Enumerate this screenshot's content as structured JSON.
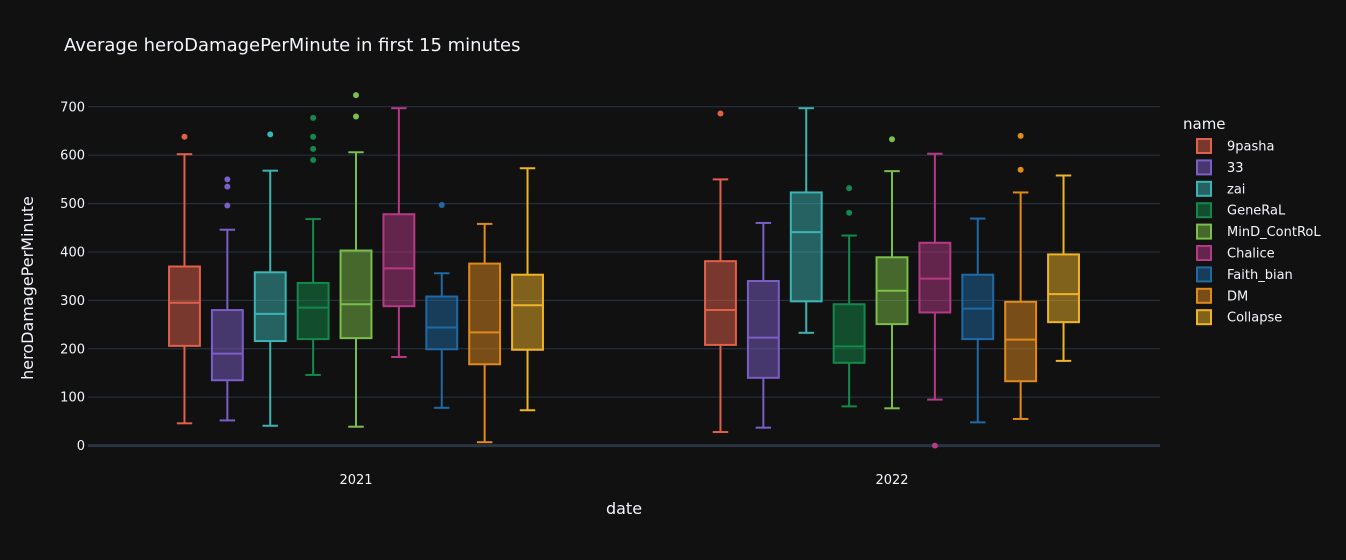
{
  "chart_data": {
    "type": "box",
    "title": "Average heroDamagePerMinute in first 15 minutes",
    "xlabel": "date",
    "ylabel": "heroDamagePerMinute",
    "categories": [
      "2021",
      "2022"
    ],
    "yticks": [
      0,
      100,
      200,
      300,
      400,
      500,
      600,
      700
    ],
    "ylim": [
      -5,
      745
    ],
    "legend_title": "name",
    "grid": true,
    "legend_position": "right",
    "series": [
      {
        "name": "9pasha",
        "color": "#e0604a",
        "boxes": [
          {
            "min": 46,
            "q1": 206,
            "median": 295,
            "q3": 370,
            "max": 602,
            "outliers": [
              638
            ]
          },
          {
            "min": 28,
            "q1": 208,
            "median": 280,
            "q3": 381,
            "max": 550,
            "outliers": [
              686
            ]
          }
        ]
      },
      {
        "name": "33",
        "color": "#7b5ec8",
        "boxes": [
          {
            "min": 52,
            "q1": 135,
            "median": 190,
            "q3": 280,
            "max": 446,
            "outliers": [
              496,
              535,
              550
            ]
          },
          {
            "min": 37,
            "q1": 140,
            "median": 223,
            "q3": 340,
            "max": 460,
            "outliers": []
          }
        ]
      },
      {
        "name": "zai",
        "color": "#3cb4b4",
        "boxes": [
          {
            "min": 41,
            "q1": 216,
            "median": 272,
            "q3": 358,
            "max": 568,
            "outliers": [
              643
            ]
          },
          {
            "min": 233,
            "q1": 298,
            "median": 441,
            "q3": 523,
            "max": 697,
            "outliers": []
          }
        ]
      },
      {
        "name": "GeneRaL",
        "color": "#14894c",
        "boxes": [
          {
            "min": 146,
            "q1": 220,
            "median": 285,
            "q3": 336,
            "max": 468,
            "outliers": [
              590,
              613,
              638,
              677
            ]
          },
          {
            "min": 81,
            "q1": 171,
            "median": 205,
            "q3": 292,
            "max": 434,
            "outliers": [
              481,
              532
            ]
          }
        ]
      },
      {
        "name": "MinD_ContRoL",
        "color": "#7bbf4a",
        "boxes": [
          {
            "min": 39,
            "q1": 222,
            "median": 292,
            "q3": 403,
            "max": 606,
            "outliers": [
              680,
              724
            ]
          },
          {
            "min": 77,
            "q1": 251,
            "median": 320,
            "q3": 389,
            "max": 567,
            "outliers": [
              633
            ]
          }
        ]
      },
      {
        "name": "Chalice",
        "color": "#b53a86",
        "boxes": [
          {
            "min": 183,
            "q1": 288,
            "median": 366,
            "q3": 478,
            "max": 697,
            "outliers": []
          },
          {
            "min": 95,
            "q1": 275,
            "median": 345,
            "q3": 419,
            "max": 603,
            "outliers": [
              0
            ]
          }
        ]
      },
      {
        "name": "Faith_bian",
        "color": "#1f6aa5",
        "boxes": [
          {
            "min": 78,
            "q1": 199,
            "median": 244,
            "q3": 308,
            "max": 356,
            "outliers": [
              497
            ]
          },
          {
            "min": 48,
            "q1": 220,
            "median": 283,
            "q3": 353,
            "max": 469,
            "outliers": []
          }
        ]
      },
      {
        "name": "DM",
        "color": "#e08a1e",
        "boxes": [
          {
            "min": 7,
            "q1": 168,
            "median": 234,
            "q3": 376,
            "max": 458,
            "outliers": []
          },
          {
            "min": 55,
            "q1": 133,
            "median": 219,
            "q3": 297,
            "max": 523,
            "outliers": [
              570,
              640
            ]
          }
        ]
      },
      {
        "name": "Collapse",
        "color": "#f0b429",
        "boxes": [
          {
            "min": 73,
            "q1": 198,
            "median": 290,
            "q3": 353,
            "max": 573,
            "outliers": []
          },
          {
            "min": 175,
            "q1": 255,
            "median": 313,
            "q3": 395,
            "max": 558,
            "outliers": []
          }
        ]
      }
    ]
  }
}
